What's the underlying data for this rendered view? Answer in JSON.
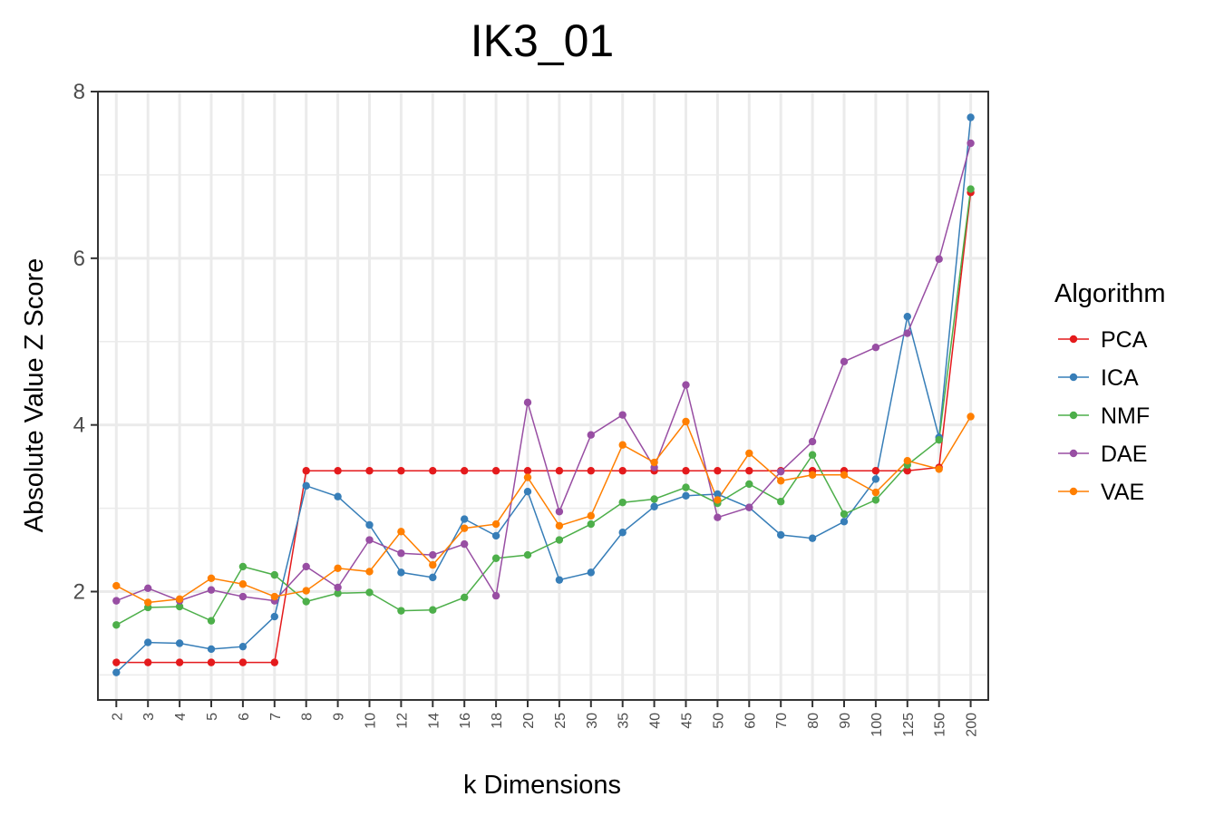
{
  "chart_data": {
    "type": "line",
    "title": "IK3_01",
    "xlabel": "k Dimensions",
    "ylabel": "Absolute Value Z Score",
    "ylim": [
      0.7,
      8
    ],
    "yticks": [
      2,
      4,
      6,
      8
    ],
    "grid": true,
    "legend_title": "Algorithm",
    "legend_position": "right",
    "categories": [
      "2",
      "3",
      "4",
      "5",
      "6",
      "7",
      "8",
      "9",
      "10",
      "12",
      "14",
      "16",
      "18",
      "20",
      "25",
      "30",
      "35",
      "40",
      "45",
      "50",
      "60",
      "70",
      "80",
      "90",
      "100",
      "125",
      "150",
      "200"
    ],
    "series": [
      {
        "name": "PCA",
        "color": "#e41a1c",
        "values": [
          1.15,
          1.15,
          1.15,
          1.15,
          1.15,
          1.15,
          3.45,
          3.45,
          3.45,
          3.45,
          3.45,
          3.45,
          3.45,
          3.45,
          3.45,
          3.45,
          3.45,
          3.45,
          3.45,
          3.45,
          3.45,
          3.45,
          3.45,
          3.45,
          3.45,
          3.45,
          3.49,
          6.79
        ]
      },
      {
        "name": "ICA",
        "color": "#377eb8",
        "values": [
          1.03,
          1.39,
          1.38,
          1.31,
          1.34,
          1.7,
          3.27,
          3.14,
          2.8,
          2.23,
          2.17,
          2.87,
          2.67,
          3.2,
          2.14,
          2.23,
          2.71,
          3.02,
          3.15,
          3.17,
          3.01,
          2.68,
          2.64,
          2.84,
          3.35,
          5.3,
          3.85,
          7.69
        ]
      },
      {
        "name": "NMF",
        "color": "#4daf4a",
        "values": [
          1.6,
          1.81,
          1.82,
          1.65,
          2.3,
          2.2,
          1.88,
          1.98,
          1.99,
          1.77,
          1.78,
          1.93,
          2.4,
          2.44,
          2.62,
          2.81,
          3.07,
          3.11,
          3.25,
          3.06,
          3.29,
          3.08,
          3.64,
          2.93,
          3.1,
          3.52,
          3.82,
          6.83
        ]
      },
      {
        "name": "DAE",
        "color": "#984ea3",
        "values": [
          1.89,
          2.04,
          1.89,
          2.02,
          1.94,
          1.89,
          2.3,
          2.05,
          2.62,
          2.46,
          2.44,
          2.57,
          1.95,
          4.27,
          2.96,
          3.88,
          4.12,
          3.49,
          4.48,
          2.89,
          3.01,
          3.44,
          3.8,
          4.76,
          4.93,
          5.1,
          5.99,
          7.38
        ]
      },
      {
        "name": "VAE",
        "color": "#ff7f00",
        "values": [
          2.07,
          1.87,
          1.91,
          2.16,
          2.09,
          1.94,
          2.01,
          2.28,
          2.24,
          2.72,
          2.32,
          2.76,
          2.81,
          3.37,
          2.79,
          2.91,
          3.76,
          3.55,
          4.04,
          3.1,
          3.66,
          3.33,
          3.4,
          3.4,
          3.19,
          3.57,
          3.47,
          4.1
        ]
      }
    ]
  }
}
